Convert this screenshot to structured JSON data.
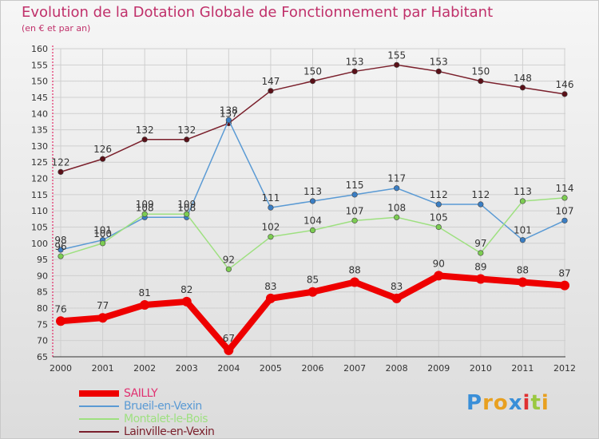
{
  "title": "Evolution de la Dotation Globale de Fonctionnement par Habitant",
  "subtitle": "(en € et par an)",
  "logo": "Proxiti",
  "colors": {
    "title": "#c0306a",
    "axis": "#e0004a",
    "grid": "#cfcfcf"
  },
  "chart_data": {
    "type": "line",
    "title": "Evolution de la Dotation Globale de Fonctionnement par Habitant",
    "subtitle": "(en € et par an)",
    "xlabel": "",
    "ylabel": "",
    "ylim": [
      65,
      160
    ],
    "ytick_step": 5,
    "grid": true,
    "legend_position": "bottom-left",
    "x": [
      "2000",
      "2001",
      "2002",
      "2003",
      "2004",
      "2005",
      "2006",
      "2007",
      "2008",
      "2009",
      "2010",
      "2011",
      "2012"
    ],
    "series": [
      {
        "name": "Lainville-en-Vexin",
        "color": "#7a1f2b",
        "point_color": "#5a1018",
        "style": "thin",
        "values": [
          122,
          126,
          132,
          132,
          137,
          147,
          150,
          153,
          155,
          153,
          150,
          148,
          146
        ],
        "labels": [
          "122",
          "126",
          "132",
          "132",
          "137",
          "147",
          "150",
          "153",
          "155",
          "153",
          "150",
          "148",
          "146"
        ]
      },
      {
        "name": "Brueil-en-Vexin",
        "color": "#5a9ad4",
        "point_color": "#3a7ec4",
        "style": "thin",
        "values": [
          98,
          101,
          108,
          108,
          138,
          111,
          113,
          115,
          117,
          112,
          112,
          101,
          107
        ],
        "labels": [
          "98",
          "101",
          "108",
          "108",
          "138",
          "111",
          "113",
          "115",
          "117",
          "112",
          "112",
          "101",
          "107"
        ]
      },
      {
        "name": "Montalet-le-Bois",
        "color": "#9ee080",
        "point_color": "#7ccc52",
        "style": "thin",
        "values": [
          96,
          100,
          109,
          109,
          92,
          102,
          104,
          107,
          108,
          105,
          97,
          113,
          114
        ],
        "labels": [
          "96",
          "100",
          "109",
          "109",
          "92",
          "102",
          "104",
          "107",
          "108",
          "105",
          "97",
          "113",
          "114"
        ]
      },
      {
        "name": "SAILLY",
        "color": "#ee0000",
        "point_color": "#ee0000",
        "style": "thick",
        "values": [
          76,
          77,
          81,
          82,
          67,
          83,
          85,
          88,
          83,
          90,
          89,
          88,
          87
        ],
        "labels": [
          "76",
          "77",
          "81",
          "82",
          "67",
          "83",
          "85",
          "88",
          "83",
          "90",
          "89",
          "88",
          "87"
        ]
      }
    ],
    "legend": [
      "SAILLY",
      "Brueil-en-Vexin",
      "Montalet-le-Bois",
      "Lainville-en-Vexin"
    ]
  }
}
